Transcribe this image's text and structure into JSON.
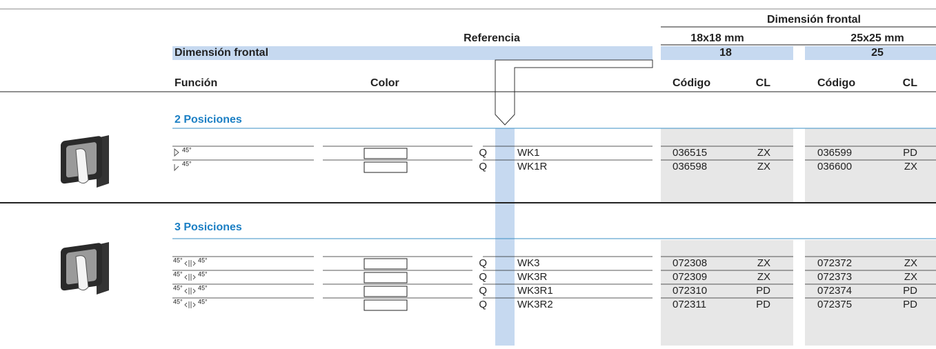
{
  "header": {
    "group_title": "Dimensión frontal",
    "reference": "Referencia",
    "size_18": "18x18 mm",
    "size_25": "25x25 mm",
    "band_label": "Dimensión frontal",
    "band_18": "18",
    "band_25": "25",
    "columns": {
      "function": "Función",
      "color": "Color",
      "code_18": "Código",
      "cl_18": "CL",
      "code_25": "Código",
      "cl_25": "CL"
    }
  },
  "sections": [
    {
      "title": "2 Posiciones",
      "rows": [
        {
          "angles": [
            "45°"
          ],
          "prefix": "Q",
          "reference": "WK1",
          "code_18": "036515",
          "cl_18": "ZX",
          "code_25": "036599",
          "cl_25": "PD"
        },
        {
          "angles": [
            "45°"
          ],
          "prefix": "Q",
          "reference": "WK1R",
          "code_18": "036598",
          "cl_18": "ZX",
          "code_25": "036600",
          "cl_25": "ZX"
        }
      ]
    },
    {
      "title": "3 Posiciones",
      "rows": [
        {
          "angles": [
            "45°",
            "45°"
          ],
          "prefix": "Q",
          "reference": "WK3",
          "code_18": "072308",
          "cl_18": "ZX",
          "code_25": "072372",
          "cl_25": "ZX"
        },
        {
          "angles": [
            "45°",
            "45°"
          ],
          "prefix": "Q",
          "reference": "WK3R",
          "code_18": "072309",
          "cl_18": "ZX",
          "code_25": "072373",
          "cl_25": "ZX"
        },
        {
          "angles": [
            "45°",
            "45°"
          ],
          "prefix": "Q",
          "reference": "WK3R1",
          "code_18": "072310",
          "cl_18": "PD",
          "code_25": "072374",
          "cl_25": "PD"
        },
        {
          "angles": [
            "45°",
            "45°"
          ],
          "prefix": "Q",
          "reference": "WK3R2",
          "code_18": "072311",
          "cl_18": "PD",
          "code_25": "072375",
          "cl_25": "PD"
        }
      ]
    }
  ]
}
